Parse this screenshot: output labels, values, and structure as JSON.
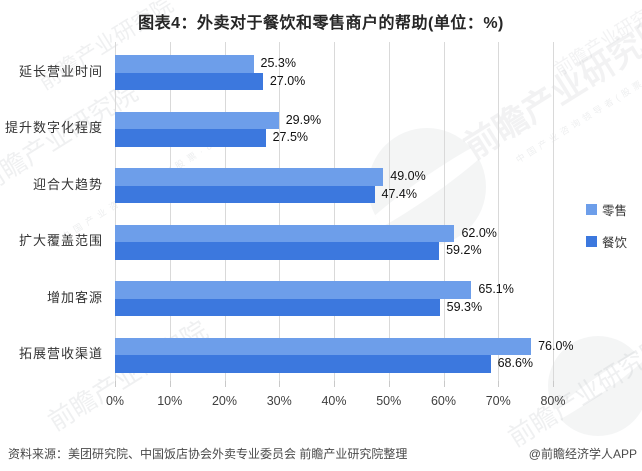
{
  "chart_data": {
    "type": "bar",
    "orientation": "horizontal",
    "title": "图表4：外卖对于餐饮和零售商户的帮助(单位：%)",
    "categories": [
      "延长营业时间",
      "提升数字化程度",
      "迎合大趋势",
      "扩大覆盖范围",
      "增加客源",
      "拓展营收渠道"
    ],
    "series": [
      {
        "name": "零售",
        "color": "#6D9EEA",
        "values": [
          25.3,
          29.9,
          49.0,
          62.0,
          65.1,
          76.0
        ]
      },
      {
        "name": "餐饮",
        "color": "#3C78DE",
        "values": [
          27.0,
          27.5,
          47.4,
          59.2,
          59.3,
          68.6
        ]
      }
    ],
    "value_format": "{v}%",
    "x_ticks": [
      "0%",
      "10%",
      "20%",
      "30%",
      "40%",
      "50%",
      "60%",
      "70%",
      "80%"
    ],
    "xlim": [
      0,
      80
    ],
    "grid": "vertical-only",
    "legend_position": "right-middle"
  },
  "footer": {
    "source": "资料来源：美团研究院、中国饭店协会外卖专业委员会 前瞻产业研究院整理",
    "credit": "@前瞻经济学人APP"
  },
  "watermark": {
    "main": "前瞻产业研究院",
    "sub": "中国产业咨询领导者(股票·839599)"
  },
  "colors": {
    "retail_bar": "#6D9EEA",
    "catering_bar": "#3C78DE",
    "gridline": "#D9D9D9",
    "title_text": "#262626",
    "body_text": "#3F3F3F"
  }
}
